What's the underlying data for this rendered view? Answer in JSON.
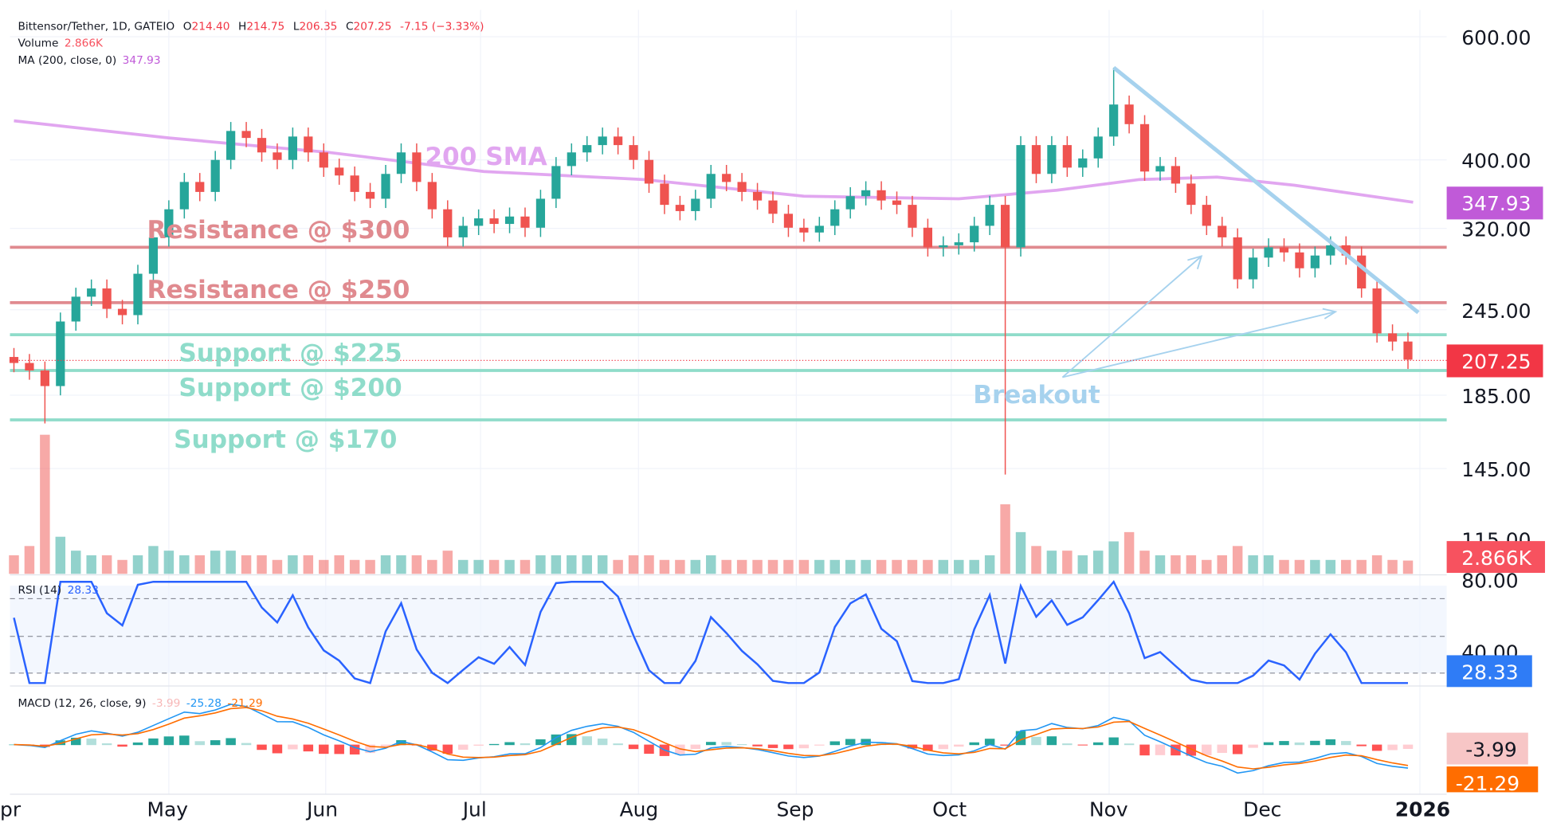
{
  "legend": {
    "symbol": "Bittensor/Tether, 1D, GATEIO",
    "o_label": "O",
    "o": "214.40",
    "h_label": "H",
    "h": "214.75",
    "l_label": "L",
    "l": "206.35",
    "c_label": "C",
    "c": "207.25",
    "change": "-7.15 (−3.33%)",
    "volume_label": "Volume",
    "volume": "2.866K",
    "ma_label": "MA (200, close, 0)",
    "ma": "347.93",
    "rsi_label": "RSI (14)",
    "rsi": "28.33",
    "macd_label": "MACD (12, 26, close, 9)",
    "macd_hist": "-3.99",
    "macd_line": "-25.28",
    "macd_signal": "-21.29"
  },
  "price_axis": [
    "600.00",
    "400.00",
    "320.00",
    "245.00",
    "185.00",
    "145.00",
    "115.00"
  ],
  "rsi_axis": [
    "80.00",
    "40.00"
  ],
  "time_axis": [
    "pr",
    "May",
    "Jun",
    "Jul",
    "Aug",
    "Sep",
    "Oct",
    "Nov",
    "Dec",
    "2026"
  ],
  "tags": {
    "ma": "347.93",
    "price": "207.25",
    "volume": "2.866K",
    "rsi": "28.33",
    "hist": "-3.99",
    "signal": "-21.29"
  },
  "annotations": {
    "sma": "200 SMA",
    "res300": "Resistance @ $300",
    "res250": "Resistance @ $250",
    "sup225": "Support @ $225",
    "sup200": "Support @ $200",
    "sup170": "Support @ $170",
    "breakout": "Breakout"
  },
  "colors": {
    "up": "#26a69a",
    "down": "#ef5350",
    "ma": "#e1a6f0",
    "resistance": "#e08a8f",
    "support": "#8fdcca",
    "trend": "#a6d2ee",
    "rsi": "#2962ff",
    "macd": "#2196f3",
    "signal": "#ff6d00",
    "ma_tag": "#c05ad8",
    "price_tag": "#f23645",
    "rsi_tag": "#2f7cf6",
    "hist_tag": "#f7c6c6",
    "signal_tag": "#ff6d00"
  },
  "chart_data": {
    "type": "candlestick",
    "yscale": "log",
    "ylim": [
      100,
      640
    ],
    "levels": {
      "resistance": [
        300,
        250
      ],
      "support": [
        225,
        200,
        170
      ]
    },
    "trendline": [
      [
        "2025-10-31",
        542
      ],
      [
        "2025-12-29",
        242
      ]
    ],
    "wicks": [
      {
        "date": "2025-04-07",
        "low": 168
      },
      {
        "date": "2025-10-10",
        "low": 142
      },
      {
        "date": "2025-10-31",
        "high": 542
      }
    ],
    "dates": [
      "2025-04-01",
      "2025-04-04",
      "2025-04-07",
      "2025-04-10",
      "2025-04-13",
      "2025-04-16",
      "2025-04-19",
      "2025-04-22",
      "2025-04-25",
      "2025-04-28",
      "2025-05-01",
      "2025-05-04",
      "2025-05-07",
      "2025-05-10",
      "2025-05-13",
      "2025-05-16",
      "2025-05-19",
      "2025-05-22",
      "2025-05-25",
      "2025-05-28",
      "2025-05-31",
      "2025-06-03",
      "2025-06-06",
      "2025-06-09",
      "2025-06-12",
      "2025-06-15",
      "2025-06-18",
      "2025-06-21",
      "2025-06-24",
      "2025-06-27",
      "2025-06-30",
      "2025-07-03",
      "2025-07-06",
      "2025-07-09",
      "2025-07-12",
      "2025-07-15",
      "2025-07-18",
      "2025-07-21",
      "2025-07-24",
      "2025-07-27",
      "2025-07-30",
      "2025-08-02",
      "2025-08-05",
      "2025-08-08",
      "2025-08-11",
      "2025-08-14",
      "2025-08-17",
      "2025-08-20",
      "2025-08-23",
      "2025-08-26",
      "2025-08-29",
      "2025-09-01",
      "2025-09-04",
      "2025-09-07",
      "2025-09-10",
      "2025-09-13",
      "2025-09-16",
      "2025-09-19",
      "2025-09-22",
      "2025-09-25",
      "2025-09-28",
      "2025-10-01",
      "2025-10-04",
      "2025-10-07",
      "2025-10-10",
      "2025-10-13",
      "2025-10-16",
      "2025-10-19",
      "2025-10-22",
      "2025-10-25",
      "2025-10-28",
      "2025-10-31",
      "2025-11-03",
      "2025-11-06",
      "2025-11-09",
      "2025-11-12",
      "2025-11-15",
      "2025-11-18",
      "2025-11-21",
      "2025-11-24",
      "2025-11-27",
      "2025-11-30",
      "2025-12-03",
      "2025-12-06",
      "2025-12-09",
      "2025-12-12",
      "2025-12-15",
      "2025-12-18",
      "2025-12-21",
      "2025-12-24",
      "2025-12-27"
    ],
    "close": [
      205,
      200,
      190,
      235,
      255,
      262,
      245,
      240,
      275,
      310,
      340,
      372,
      360,
      400,
      440,
      430,
      410,
      400,
      432,
      410,
      390,
      380,
      360,
      352,
      382,
      410,
      372,
      340,
      310,
      322,
      330,
      324,
      332,
      320,
      352,
      392,
      410,
      420,
      432,
      420,
      400,
      370,
      345,
      338,
      352,
      382,
      372,
      360,
      350,
      335,
      320,
      315,
      322,
      340,
      355,
      362,
      350,
      345,
      320,
      300,
      302,
      305,
      322,
      345,
      300,
      420,
      382,
      420,
      390,
      402,
      432,
      480,
      450,
      385,
      392,
      370,
      345,
      322,
      310,
      270,
      290,
      300,
      295,
      280,
      292,
      302,
      292,
      262,
      226,
      220,
      207.25
    ],
    "volume_k": [
      4,
      6,
      30,
      8,
      5,
      4,
      4,
      3,
      4,
      6,
      5,
      4,
      4,
      5,
      5,
      4,
      4,
      3,
      4,
      4,
      3,
      4,
      3,
      3,
      4,
      4,
      4,
      3,
      5,
      3,
      3,
      3,
      3,
      3,
      4,
      4,
      4,
      4,
      4,
      3,
      4,
      4,
      3,
      3,
      3,
      4,
      3,
      3,
      3,
      3,
      3,
      3,
      3,
      3,
      3,
      3,
      3,
      3,
      3,
      3,
      3,
      3,
      3,
      4,
      15,
      9,
      6,
      5,
      5,
      4,
      5,
      7,
      9,
      5,
      4,
      4,
      4,
      3,
      4,
      6,
      4,
      4,
      3,
      3,
      3,
      3,
      3,
      3,
      4,
      3,
      2.866
    ],
    "ma200": {
      "dates": [
        "2025-04-01",
        "2025-05-01",
        "2025-06-01",
        "2025-07-01",
        "2025-08-01",
        "2025-09-01",
        "2025-10-01",
        "2025-10-20",
        "2025-11-05",
        "2025-11-20",
        "2025-12-05",
        "2025-12-28"
      ],
      "values": [
        455,
        430,
        410,
        385,
        375,
        355,
        352,
        362,
        375,
        378,
        368,
        348
      ]
    }
  }
}
